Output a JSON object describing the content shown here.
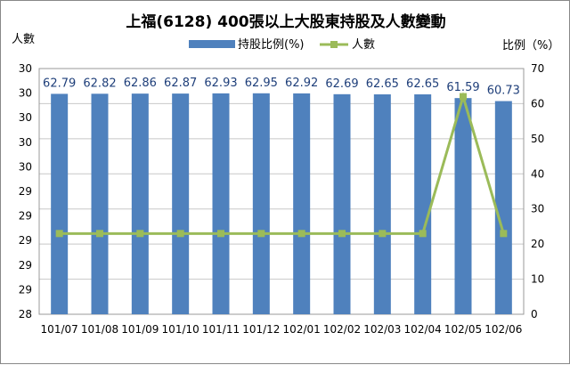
{
  "chart_data": {
    "type": "bar",
    "title": "上福(6128) 400張以上大股東持股及人數變動",
    "ylabel_left": "人數",
    "ylabel_right": "比例（%）",
    "categories": [
      "101/07",
      "101/08",
      "101/09",
      "101/10",
      "101/11",
      "101/12",
      "102/01",
      "102/02",
      "102/03",
      "102/04",
      "102/05",
      "102/06"
    ],
    "series": [
      {
        "name": "持股比例(%)",
        "type": "bar",
        "axis": "right",
        "color": "#4f81bd",
        "values": [
          62.79,
          62.82,
          62.86,
          62.87,
          62.93,
          62.95,
          62.92,
          62.69,
          62.65,
          62.65,
          61.59,
          60.73
        ]
      },
      {
        "name": "人數",
        "type": "line",
        "axis": "left",
        "color": "#9bbb59",
        "values": [
          29,
          29,
          29,
          29,
          29,
          29,
          29,
          29,
          29,
          29,
          30,
          29
        ]
      }
    ],
    "left_axis_ticks": [
      "28",
      "29",
      "29",
      "29",
      "29",
      "29",
      "30",
      "30",
      "30",
      "30",
      "30"
    ],
    "right_axis_ticks": [
      "0",
      "10",
      "20",
      "30",
      "40",
      "50",
      "60",
      "70"
    ],
    "ylim_right": [
      0,
      70
    ],
    "grid": true,
    "legend_position": "top"
  }
}
